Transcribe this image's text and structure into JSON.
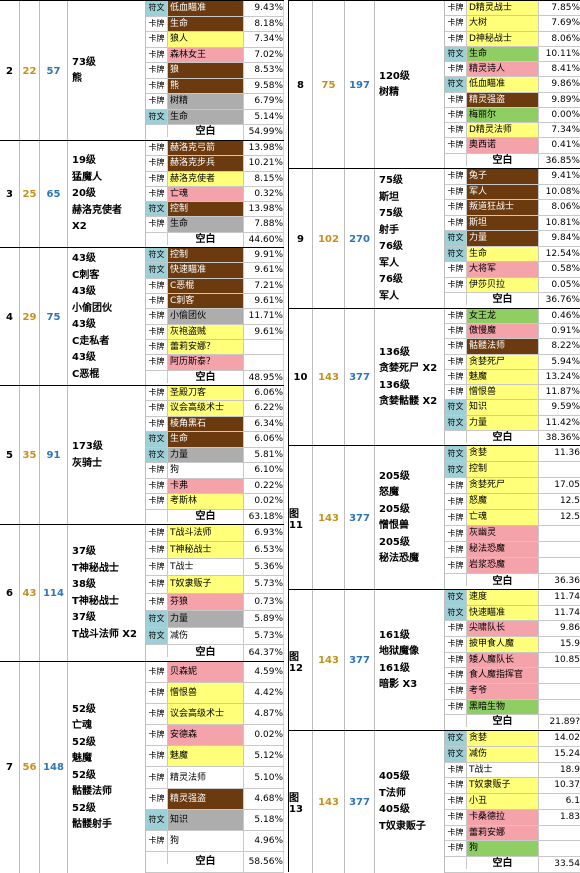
{
  "colors": {
    "brown": "#6b3a0f",
    "yellow": "#ffff7a",
    "pink": "#f4a3ab",
    "green": "#8fce63",
    "gray": "#adadad",
    "white": "#ffffff",
    "teal": "#9dcfd6",
    "gold": "#c8901b",
    "blue": "#2e75b6"
  },
  "left": [
    {
      "id": "g2",
      "n1": "2",
      "n2": "22",
      "n3": "57",
      "desc": [
        "73级",
        "熊"
      ],
      "rows": [
        {
          "t": "符文",
          "n": "低血瞄准",
          "p": "9.43%",
          "c": "brown"
        },
        {
          "t": "卡牌",
          "n": "生命",
          "p": "8.18%",
          "c": "brown"
        },
        {
          "t": "卡牌",
          "n": "狼人",
          "p": "7.34%",
          "c": "yellow"
        },
        {
          "t": "卡牌",
          "n": "森林女王",
          "p": "7.02%",
          "c": "pink"
        },
        {
          "t": "卡牌",
          "n": "狼",
          "p": "8.53%",
          "c": "brown"
        },
        {
          "t": "卡牌",
          "n": "熊",
          "p": "9.58%",
          "c": "brown"
        },
        {
          "t": "卡牌",
          "n": "树精",
          "p": "6.79%",
          "c": "gray"
        },
        {
          "t": "符文",
          "n": "生命",
          "p": "5.14%",
          "c": "gray"
        }
      ],
      "blank": {
        "label": "空白",
        "p": "54.99%"
      }
    },
    {
      "id": "g3",
      "n1": "3",
      "n2": "25",
      "n3": "65",
      "desc": [
        "19级",
        "猛魔人",
        "20级",
        "赫洛克使者",
        "X2"
      ],
      "rows": [
        {
          "t": "卡牌",
          "n": "赫洛克弓箭",
          "p": "13.98%",
          "c": "brown"
        },
        {
          "t": "卡牌",
          "n": "赫洛克步兵",
          "p": "10.21%",
          "c": "brown"
        },
        {
          "t": "卡牌",
          "n": "赫洛克使者",
          "p": "8.15%",
          "c": "yellow"
        },
        {
          "t": "卡牌",
          "n": "亡魂",
          "p": "0.32%",
          "c": "pink"
        },
        {
          "t": "符文",
          "n": "控制",
          "p": "13.98%",
          "c": "brown"
        },
        {
          "t": "卡牌",
          "n": "生命",
          "p": "7.88%",
          "c": "gray"
        }
      ],
      "blank": {
        "label": "空白",
        "p": "44.60%"
      }
    },
    {
      "id": "g4",
      "n1": "4",
      "n2": "29",
      "n3": "75",
      "desc": [
        "43级",
        "C刺客",
        "43级",
        "小偷团伙",
        "43级",
        "C走私者",
        "43级",
        "C恶棍"
      ],
      "rows": [
        {
          "t": "符文",
          "n": "控制",
          "p": "9.91%",
          "c": "brown"
        },
        {
          "t": "符文",
          "n": "快速瞄准",
          "p": "9.61%",
          "c": "brown"
        },
        {
          "t": "卡牌",
          "n": "C恶棍",
          "p": "7.21%",
          "c": "brown"
        },
        {
          "t": "卡牌",
          "n": "C刺客",
          "p": "9.61%",
          "c": "brown"
        },
        {
          "t": "卡牌",
          "n": "小偷团伙",
          "p": "11.71%",
          "c": "gray"
        },
        {
          "t": "卡牌",
          "n": "灰袍盗贼",
          "p": "9.61%",
          "c": "yellow"
        },
        {
          "t": "卡牌",
          "n": "蕾莉安娜？",
          "p": "",
          "c": "yellow"
        },
        {
          "t": "卡牌",
          "n": "阿历斯泰？",
          "p": "",
          "c": "pink"
        }
      ],
      "blank": {
        "label": "空白",
        "p": "48.95%"
      }
    },
    {
      "id": "g5",
      "n1": "5",
      "n2": "35",
      "n3": "91",
      "desc": [
        "173级",
        "灰骑士"
      ],
      "rows": [
        {
          "t": "卡牌",
          "n": "圣殿刀客",
          "p": "6.06%",
          "c": "yellow"
        },
        {
          "t": "卡牌",
          "n": "议会高级术士",
          "p": "6.22%",
          "c": "yellow"
        },
        {
          "t": "卡牌",
          "n": "棱角黑石",
          "p": "6.34%",
          "c": "brown"
        },
        {
          "t": "符文",
          "n": "生命",
          "p": "6.06%",
          "c": "brown"
        },
        {
          "t": "符文",
          "n": "力量",
          "p": "5.81%",
          "c": "gray"
        },
        {
          "t": "卡牌",
          "n": "狗",
          "p": "6.10%",
          "c": "white"
        },
        {
          "t": "卡牌",
          "n": "卡弗",
          "p": "0.22%",
          "c": "pink"
        },
        {
          "t": "卡牌",
          "n": "考斯林",
          "p": "0.02%",
          "c": "yellow"
        }
      ],
      "blank": {
        "label": "空白",
        "p": "63.18%"
      }
    },
    {
      "id": "g6",
      "n1": "6",
      "n2": "43",
      "n3": "114",
      "desc": [
        "37级",
        "T神秘战士",
        "38级",
        "T神秘战士",
        "37级",
        "T战斗法师 X2"
      ],
      "rows": [
        {
          "t": "卡牌",
          "n": "T战斗法师",
          "p": "6.93%",
          "c": "yellow"
        },
        {
          "t": "卡牌",
          "n": "T神秘战士",
          "p": "6.53%",
          "c": "yellow"
        },
        {
          "t": "卡牌",
          "n": "T战士",
          "p": "5.36%",
          "c": "white"
        },
        {
          "t": "卡牌",
          "n": "T奴隶贩子",
          "p": "5.73%",
          "c": "yellow"
        },
        {
          "t": "卡牌",
          "n": "芬狼",
          "p": "0.73%",
          "c": "pink"
        },
        {
          "t": "符文",
          "n": "力量",
          "p": "5.89%",
          "c": "gray"
        },
        {
          "t": "符文",
          "n": "减伤",
          "p": "5.73%",
          "c": "white"
        }
      ],
      "blank": {
        "label": "空白",
        "p": "64.37%"
      }
    },
    {
      "id": "g7",
      "n1": "7",
      "n2": "56",
      "n3": "148",
      "desc": [
        "52级",
        "亡魂",
        "52级",
        "魅魔",
        "52级",
        "骷髅法师",
        "52级",
        "骷髅射手"
      ],
      "rows": [
        {
          "t": "卡牌",
          "n": "贝森妮",
          "p": "4.59%",
          "c": "pink"
        },
        {
          "t": "卡牌",
          "n": "憎恨兽",
          "p": "4.42%",
          "c": "yellow"
        },
        {
          "t": "卡牌",
          "n": "议会高级术士",
          "p": "4.87%",
          "c": "yellow"
        },
        {
          "t": "卡牌",
          "n": "安德森",
          "p": "0.02%",
          "c": "pink"
        },
        {
          "t": "卡牌",
          "n": "魅魔",
          "p": "5.12%",
          "c": "yellow"
        },
        {
          "t": "卡牌",
          "n": "精灵法师",
          "p": "5.10%",
          "c": "white"
        },
        {
          "t": "卡牌",
          "n": "精灵强盗",
          "p": "4.68%",
          "c": "brown"
        },
        {
          "t": "符文",
          "n": "知识",
          "p": "5.18%",
          "c": "gray"
        },
        {
          "t": "卡牌",
          "n": "狗",
          "p": "4.96%",
          "c": "white"
        }
      ],
      "blank": {
        "label": "空白",
        "p": "58.56%"
      }
    }
  ],
  "right": [
    {
      "id": "g8",
      "n1": "8",
      "n2": "75",
      "n3": "197",
      "desc": [
        "120级",
        "树精"
      ],
      "rows": [
        {
          "t": "卡牌",
          "n": "D精灵战士",
          "p": "7.85%",
          "c": "yellow"
        },
        {
          "t": "卡牌",
          "n": "大树",
          "p": "7.69%",
          "c": "yellow"
        },
        {
          "t": "卡牌",
          "n": "D神秘战士",
          "p": "8.06%",
          "c": "yellow"
        },
        {
          "t": "符文",
          "n": "生命",
          "p": "10.11%",
          "c": "green"
        },
        {
          "t": "卡牌",
          "n": "精灵诗人",
          "p": "8.41%",
          "c": "pink"
        },
        {
          "t": "符文",
          "n": "低血瞄准",
          "p": "9.86%",
          "c": "yellow"
        },
        {
          "t": "卡牌",
          "n": "精灵强盗",
          "p": "9.89%",
          "c": "brown"
        },
        {
          "t": "卡牌",
          "n": "梅丽尔",
          "p": "0.00%",
          "c": "green"
        },
        {
          "t": "卡牌",
          "n": "D精灵法师",
          "p": "7.34%",
          "c": "yellow"
        },
        {
          "t": "卡牌",
          "n": "奥西诺",
          "p": "0.41%",
          "c": "pink"
        }
      ],
      "blank": {
        "label": "空白",
        "p": "36.85%"
      }
    },
    {
      "id": "g9",
      "n1": "9",
      "n2": "102",
      "n3": "270",
      "desc": [
        "75级",
        "斯坦",
        "75级",
        "射手",
        "76级",
        "军人",
        "76级",
        "军人"
      ],
      "rows": [
        {
          "t": "卡牌",
          "n": "兔子",
          "p": "9.41%",
          "c": "brown"
        },
        {
          "t": "卡牌",
          "n": "军人",
          "p": "10.08%",
          "c": "brown"
        },
        {
          "t": "卡牌",
          "n": "叛道狂战士",
          "p": "8.06%",
          "c": "brown"
        },
        {
          "t": "卡牌",
          "n": "斯坦",
          "p": "10.81%",
          "c": "brown"
        },
        {
          "t": "符文",
          "n": "力量",
          "p": "9.84%",
          "c": "brown"
        },
        {
          "t": "符文",
          "n": "生命",
          "p": "12.54%",
          "c": "yellow"
        },
        {
          "t": "卡牌",
          "n": "大将军",
          "p": "0.58%",
          "c": "pink"
        },
        {
          "t": "卡牌",
          "n": "伊莎贝拉",
          "p": "0.05%",
          "c": "yellow"
        }
      ],
      "blank": {
        "label": "空白",
        "p": "36.76%"
      }
    },
    {
      "id": "g10",
      "n1": "10",
      "n2": "143",
      "n3": "377",
      "desc": [
        "136级",
        "贪婪死尸 X2",
        "136级",
        "贪婪骷髅 X2"
      ],
      "rows": [
        {
          "t": "卡牌",
          "n": "女王龙",
          "p": "0.46%",
          "c": "green"
        },
        {
          "t": "卡牌",
          "n": "傲慢魔",
          "p": "0.91%",
          "c": "pink"
        },
        {
          "t": "卡牌",
          "n": "骷髅法师",
          "p": "8.22%",
          "c": "brown"
        },
        {
          "t": "卡牌",
          "n": "贪婪死尸",
          "p": "5.94%",
          "c": "yellow"
        },
        {
          "t": "卡牌",
          "n": "魅魔",
          "p": "13.24%",
          "c": "yellow"
        },
        {
          "t": "卡牌",
          "n": "憎恨兽",
          "p": "11.87%",
          "c": "yellow"
        },
        {
          "t": "符文",
          "n": "知识",
          "p": "9.59%",
          "c": "yellow"
        },
        {
          "t": "符文",
          "n": "力量",
          "p": "11.42%",
          "c": "yellow"
        }
      ],
      "blank": {
        "label": "空白",
        "p": "38.36%"
      }
    },
    {
      "id": "g11",
      "n1": "图11",
      "n2": "143",
      "n3": "377",
      "desc": [
        "205级",
        "怒魔",
        "205级",
        "憎恨兽",
        "205级",
        "秘法恐魔"
      ],
      "rows": [
        {
          "t": "符文",
          "n": "贪婪",
          "p": "11.36",
          "c": "yellow"
        },
        {
          "t": "符文",
          "n": "控制",
          "p": "",
          "c": "yellow"
        },
        {
          "t": "卡牌",
          "n": "贪婪死尸",
          "p": "17.05",
          "c": "yellow"
        },
        {
          "t": "卡牌",
          "n": "怒魔",
          "p": "12.5",
          "c": "yellow"
        },
        {
          "t": "卡牌",
          "n": "亡魂",
          "p": "12.5",
          "c": "yellow"
        },
        {
          "t": "卡牌",
          "n": "灰幽灵",
          "p": "",
          "c": "pink"
        },
        {
          "t": "卡牌",
          "n": "秘法恐魔",
          "p": "",
          "c": "pink"
        },
        {
          "t": "卡牌",
          "n": "岩浆恐魔",
          "p": "",
          "c": "pink"
        }
      ],
      "blank": {
        "label": "空白",
        "p": "36.36"
      }
    },
    {
      "id": "g12",
      "n1": "图12",
      "n2": "143",
      "n3": "377",
      "desc": [
        "161级",
        "地狱魔像",
        "161级",
        "暗影 X3"
      ],
      "rows": [
        {
          "t": "符文",
          "n": "速度",
          "p": "11.74",
          "c": "yellow"
        },
        {
          "t": "符文",
          "n": "快速瞄准",
          "p": "11.74",
          "c": "yellow"
        },
        {
          "t": "卡牌",
          "n": "尖啸队长",
          "p": "9.86",
          "c": "pink"
        },
        {
          "t": "卡牌",
          "n": "披甲食人魔",
          "p": "15.9",
          "c": "yellow"
        },
        {
          "t": "卡牌",
          "n": "矮人魔队长",
          "p": "10.85",
          "c": "pink"
        },
        {
          "t": "卡牌",
          "n": "食人魔指挥官",
          "p": "",
          "c": "pink"
        },
        {
          "t": "卡牌",
          "n": "考爷",
          "p": "",
          "c": "pink"
        },
        {
          "t": "卡牌",
          "n": "黑暗生物",
          "p": "",
          "c": "green"
        }
      ],
      "blank": {
        "label": "空白",
        "p": "21.89?"
      }
    },
    {
      "id": "g13",
      "n1": "图13",
      "n2": "143",
      "n3": "377",
      "desc": [
        "405级",
        "T法师",
        "405级",
        "T奴隶贩子"
      ],
      "rows": [
        {
          "t": "符文",
          "n": "贪婪",
          "p": "14.02",
          "c": "yellow"
        },
        {
          "t": "符文",
          "n": "减伤",
          "p": "15.24",
          "c": "yellow"
        },
        {
          "t": "卡牌",
          "n": "T战士",
          "p": "18.9",
          "c": "white"
        },
        {
          "t": "卡牌",
          "n": "T奴隶贩子",
          "p": "10.37",
          "c": "yellow"
        },
        {
          "t": "卡牌",
          "n": "小丑",
          "p": "6.1",
          "c": "yellow"
        },
        {
          "t": "卡牌",
          "n": "卡桑德拉",
          "p": "1.83",
          "c": "pink"
        },
        {
          "t": "卡牌",
          "n": "蕾莉安娜",
          "p": "",
          "c": "pink"
        },
        {
          "t": "卡牌",
          "n": "狗",
          "p": "",
          "c": "green"
        }
      ],
      "blank": {
        "label": "空白",
        "p": "33.54"
      }
    }
  ]
}
